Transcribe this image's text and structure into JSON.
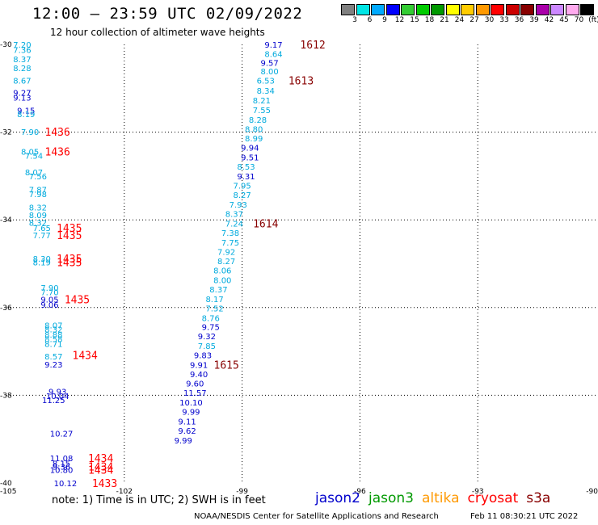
{
  "header": {
    "title": "12:00 – 23:59 UTC 02/09/2022",
    "subtitle": "12 hour collection of altimeter wave heights"
  },
  "scale": {
    "labels": [
      "3",
      "6",
      "9",
      "12",
      "15",
      "18",
      "21",
      "24",
      "27",
      "30",
      "33",
      "36",
      "39",
      "42",
      "45",
      "70",
      "(ft)"
    ],
    "colors": [
      "#808080",
      "#00e5e5",
      "#00aaff",
      "#0000ff",
      "#33cc33",
      "#00cc00",
      "#009900",
      "#ffff00",
      "#ffcc00",
      "#ff9900",
      "#ff0000",
      "#cc0000",
      "#880000",
      "#aa00aa",
      "#cc88ff",
      "#ffaaee",
      "#000000"
    ]
  },
  "footer": {
    "note": "note:  1) Time is in UTC; 2) SWH is in feet",
    "credit": "NOAA/NESDIS Center for Satellite Applications and Research",
    "timestamp": "Feb 11 08:30:21 UTC 2022"
  },
  "legend": [
    {
      "label": "jason2",
      "color": "#0000cc"
    },
    {
      "label": "jason3",
      "color": "#009900"
    },
    {
      "label": "altika",
      "color": "#ff9900"
    },
    {
      "label": "cryosat",
      "color": "#ff0000"
    },
    {
      "label": "s3a",
      "color": "#880000"
    }
  ],
  "chart_data": {
    "type": "scatter",
    "title": "12:00 – 23:59 UTC 02/09/2022",
    "subtitle": "12 hour collection of altimeter wave heights",
    "xlabel": "",
    "ylabel": "",
    "xlim": [
      -105,
      -90
    ],
    "ylim": [
      -40,
      -30
    ],
    "x_ticks": [
      "-105",
      "-102",
      "-99",
      "-96",
      "-93",
      "-90"
    ],
    "y_ticks": [
      "-30",
      "-32",
      "-34",
      "-36",
      "-38",
      "-40"
    ],
    "x_tick_values": [
      -105,
      -102,
      -99,
      -96,
      -93,
      -90
    ],
    "y_tick_values": [
      -30,
      -32,
      -34,
      -36,
      -38,
      -40
    ],
    "grid": true,
    "colors": {
      "c6": "#00aadd",
      "c9": "#00aadd",
      "c12": "#0000cc",
      "time_red": "#ff0000",
      "time_dark": "#880000"
    },
    "wave_labels": [
      {
        "lon": -104.6,
        "lat": -30.0,
        "text": "7.20",
        "c": "c9"
      },
      {
        "lon": -104.6,
        "lat": -30.12,
        "text": "7.36",
        "c": "c9"
      },
      {
        "lon": -104.6,
        "lat": -30.33,
        "text": "8.37",
        "c": "c9"
      },
      {
        "lon": -104.6,
        "lat": -30.53,
        "text": "8.28",
        "c": "c9"
      },
      {
        "lon": -104.6,
        "lat": -30.82,
        "text": "8.67",
        "c": "c9"
      },
      {
        "lon": -104.6,
        "lat": -31.1,
        "text": "9.27",
        "c": "c12"
      },
      {
        "lon": -104.6,
        "lat": -31.21,
        "text": "9.13",
        "c": "c12"
      },
      {
        "lon": -104.5,
        "lat": -31.5,
        "text": "9.15",
        "c": "c12"
      },
      {
        "lon": -104.5,
        "lat": -31.58,
        "text": "8.19",
        "c": "c9"
      },
      {
        "lon": -104.4,
        "lat": -31.99,
        "text": "7.90",
        "c": "c9"
      },
      {
        "lon": -104.4,
        "lat": -32.44,
        "text": "8.05",
        "c": "c9"
      },
      {
        "lon": -104.3,
        "lat": -32.53,
        "text": "7.54",
        "c": "c9"
      },
      {
        "lon": -104.3,
        "lat": -32.91,
        "text": "8.07",
        "c": "c9"
      },
      {
        "lon": -104.2,
        "lat": -33.0,
        "text": "7.56",
        "c": "c9"
      },
      {
        "lon": -104.2,
        "lat": -33.31,
        "text": "7.87",
        "c": "c9"
      },
      {
        "lon": -104.2,
        "lat": -33.41,
        "text": "7.98",
        "c": "c9"
      },
      {
        "lon": -104.2,
        "lat": -33.71,
        "text": "8.32",
        "c": "c9"
      },
      {
        "lon": -104.2,
        "lat": -33.89,
        "text": "8.09",
        "c": "c9"
      },
      {
        "lon": -104.2,
        "lat": -34.06,
        "text": "8.32",
        "c": "c9"
      },
      {
        "lon": -104.1,
        "lat": -34.18,
        "text": "7.65",
        "c": "c9"
      },
      {
        "lon": -104.1,
        "lat": -34.35,
        "text": "7.77",
        "c": "c9"
      },
      {
        "lon": -104.1,
        "lat": -34.88,
        "text": "8.30",
        "c": "c9"
      },
      {
        "lon": -104.1,
        "lat": -34.96,
        "text": "8.19",
        "c": "c9"
      },
      {
        "lon": -103.9,
        "lat": -35.54,
        "text": "7.90",
        "c": "c9"
      },
      {
        "lon": -103.9,
        "lat": -35.64,
        "text": "7.70",
        "c": "c9"
      },
      {
        "lon": -103.9,
        "lat": -35.81,
        "text": "9.05",
        "c": "c12"
      },
      {
        "lon": -103.9,
        "lat": -35.93,
        "text": "9.06",
        "c": "c12"
      },
      {
        "lon": -103.8,
        "lat": -36.4,
        "text": "8.07",
        "c": "c9"
      },
      {
        "lon": -103.8,
        "lat": -36.49,
        "text": "8.32",
        "c": "c9"
      },
      {
        "lon": -103.8,
        "lat": -36.61,
        "text": "8.88",
        "c": "c9"
      },
      {
        "lon": -103.8,
        "lat": -36.71,
        "text": "8.58",
        "c": "c9"
      },
      {
        "lon": -103.8,
        "lat": -36.82,
        "text": "8.71",
        "c": "c9"
      },
      {
        "lon": -103.8,
        "lat": -37.11,
        "text": "8.57",
        "c": "c9"
      },
      {
        "lon": -103.8,
        "lat": -37.29,
        "text": "9.23",
        "c": "c12"
      },
      {
        "lon": -103.7,
        "lat": -37.91,
        "text": "9.93",
        "c": "c12"
      },
      {
        "lon": -103.7,
        "lat": -38.01,
        "text": "10.04",
        "c": "c12"
      },
      {
        "lon": -103.8,
        "lat": -38.1,
        "text": "11.25",
        "c": "c12"
      },
      {
        "lon": -103.6,
        "lat": -38.87,
        "text": "10.27",
        "c": "c12"
      },
      {
        "lon": -103.6,
        "lat": -39.43,
        "text": "11.08",
        "c": "c12"
      },
      {
        "lon": -103.6,
        "lat": -39.55,
        "text": "8.15",
        "c": "c12"
      },
      {
        "lon": -103.6,
        "lat": -39.62,
        "text": "9.36",
        "c": "c12"
      },
      {
        "lon": -103.6,
        "lat": -39.7,
        "text": "10.80",
        "c": "c12"
      },
      {
        "lon": -103.5,
        "lat": -40.0,
        "text": "10.12",
        "c": "c12"
      },
      {
        "lon": -98.2,
        "lat": -30.0,
        "text": "9.17",
        "c": "c12"
      },
      {
        "lon": -98.2,
        "lat": -30.21,
        "text": "8.64",
        "c": "c9"
      },
      {
        "lon": -98.3,
        "lat": -30.41,
        "text": "9.57",
        "c": "c12"
      },
      {
        "lon": -98.3,
        "lat": -30.61,
        "text": "8.00",
        "c": "c9"
      },
      {
        "lon": -98.4,
        "lat": -30.82,
        "text": "6.53",
        "c": "c9"
      },
      {
        "lon": -98.4,
        "lat": -31.05,
        "text": "8.34",
        "c": "c9"
      },
      {
        "lon": -98.5,
        "lat": -31.27,
        "text": "8.21",
        "c": "c9"
      },
      {
        "lon": -98.5,
        "lat": -31.49,
        "text": "7.55",
        "c": "c9"
      },
      {
        "lon": -98.6,
        "lat": -31.71,
        "text": "8.28",
        "c": "c9"
      },
      {
        "lon": -98.7,
        "lat": -31.92,
        "text": "8.80",
        "c": "c9"
      },
      {
        "lon": -98.7,
        "lat": -32.14,
        "text": "8.99",
        "c": "c9"
      },
      {
        "lon": -98.8,
        "lat": -32.35,
        "text": "9.94",
        "c": "c12"
      },
      {
        "lon": -98.8,
        "lat": -32.57,
        "text": "9.51",
        "c": "c12"
      },
      {
        "lon": -98.9,
        "lat": -32.78,
        "text": "8.53",
        "c": "c9"
      },
      {
        "lon": -98.9,
        "lat": -33.0,
        "text": "9.31",
        "c": "c12"
      },
      {
        "lon": -99.0,
        "lat": -33.21,
        "text": "7.95",
        "c": "c9"
      },
      {
        "lon": -99.0,
        "lat": -33.43,
        "text": "8.27",
        "c": "c9"
      },
      {
        "lon": -99.1,
        "lat": -33.65,
        "text": "7.93",
        "c": "c9"
      },
      {
        "lon": -99.2,
        "lat": -33.86,
        "text": "8.37",
        "c": "c9"
      },
      {
        "lon": -99.2,
        "lat": -34.08,
        "text": "7.24",
        "c": "c9"
      },
      {
        "lon": -99.3,
        "lat": -34.29,
        "text": "7.38",
        "c": "c9"
      },
      {
        "lon": -99.3,
        "lat": -34.51,
        "text": "7.75",
        "c": "c9"
      },
      {
        "lon": -99.4,
        "lat": -34.72,
        "text": "7.92",
        "c": "c9"
      },
      {
        "lon": -99.4,
        "lat": -34.94,
        "text": "8.27",
        "c": "c9"
      },
      {
        "lon": -99.5,
        "lat": -35.15,
        "text": "8.06",
        "c": "c9"
      },
      {
        "lon": -99.5,
        "lat": -35.37,
        "text": "8.00",
        "c": "c9"
      },
      {
        "lon": -99.6,
        "lat": -35.58,
        "text": "8.37",
        "c": "c9"
      },
      {
        "lon": -99.7,
        "lat": -35.8,
        "text": "8.17",
        "c": "c9"
      },
      {
        "lon": -99.7,
        "lat": -36.01,
        "text": "7.52",
        "c": "c9"
      },
      {
        "lon": -99.8,
        "lat": -36.23,
        "text": "8.76",
        "c": "c9"
      },
      {
        "lon": -99.8,
        "lat": -36.44,
        "text": "9.75",
        "c": "c12"
      },
      {
        "lon": -99.9,
        "lat": -36.65,
        "text": "9.32",
        "c": "c12"
      },
      {
        "lon": -99.9,
        "lat": -36.87,
        "text": "7.85",
        "c": "c9"
      },
      {
        "lon": -100.0,
        "lat": -37.08,
        "text": "9.83",
        "c": "c12"
      },
      {
        "lon": -100.1,
        "lat": -37.3,
        "text": "9.91",
        "c": "c12"
      },
      {
        "lon": -100.1,
        "lat": -37.51,
        "text": "9.40",
        "c": "c12"
      },
      {
        "lon": -100.2,
        "lat": -37.73,
        "text": "9.60",
        "c": "c12"
      },
      {
        "lon": -100.2,
        "lat": -37.94,
        "text": "11.57",
        "c": "c12"
      },
      {
        "lon": -100.3,
        "lat": -38.16,
        "text": "10.10",
        "c": "c12"
      },
      {
        "lon": -100.3,
        "lat": -38.37,
        "text": "9.99",
        "c": "c12"
      },
      {
        "lon": -100.4,
        "lat": -38.59,
        "text": "9.11",
        "c": "c12"
      },
      {
        "lon": -100.4,
        "lat": -38.8,
        "text": "9.62",
        "c": "c12"
      },
      {
        "lon": -100.5,
        "lat": -39.02,
        "text": "9.99",
        "c": "c12"
      }
    ],
    "time_labels": [
      {
        "lon": -97.2,
        "lat": -30.0,
        "text": "1612",
        "c": "time_dark"
      },
      {
        "lon": -97.5,
        "lat": -30.82,
        "text": "1613",
        "c": "time_dark"
      },
      {
        "lon": -98.4,
        "lat": -34.08,
        "text": "1614",
        "c": "time_dark"
      },
      {
        "lon": -99.4,
        "lat": -37.3,
        "text": "1615",
        "c": "time_dark"
      },
      {
        "lon": -103.7,
        "lat": -31.99,
        "text": "1436",
        "c": "time_red"
      },
      {
        "lon": -103.7,
        "lat": -32.44,
        "text": "1436",
        "c": "time_red"
      },
      {
        "lon": -103.4,
        "lat": -34.18,
        "text": "1435",
        "c": "time_red"
      },
      {
        "lon": -103.4,
        "lat": -34.35,
        "text": "1435",
        "c": "time_red"
      },
      {
        "lon": -103.4,
        "lat": -34.88,
        "text": "1435",
        "c": "time_red"
      },
      {
        "lon": -103.4,
        "lat": -34.96,
        "text": "1435",
        "c": "time_red"
      },
      {
        "lon": -103.2,
        "lat": -35.81,
        "text": "1435",
        "c": "time_red"
      },
      {
        "lon": -103.0,
        "lat": -37.08,
        "text": "1434",
        "c": "time_red"
      },
      {
        "lon": -102.6,
        "lat": -39.43,
        "text": "1434",
        "c": "time_red"
      },
      {
        "lon": -102.6,
        "lat": -39.62,
        "text": "1434",
        "c": "time_red"
      },
      {
        "lon": -102.6,
        "lat": -39.7,
        "text": "1434",
        "c": "time_red"
      },
      {
        "lon": -102.5,
        "lat": -40.0,
        "text": "1433",
        "c": "time_red"
      }
    ]
  }
}
